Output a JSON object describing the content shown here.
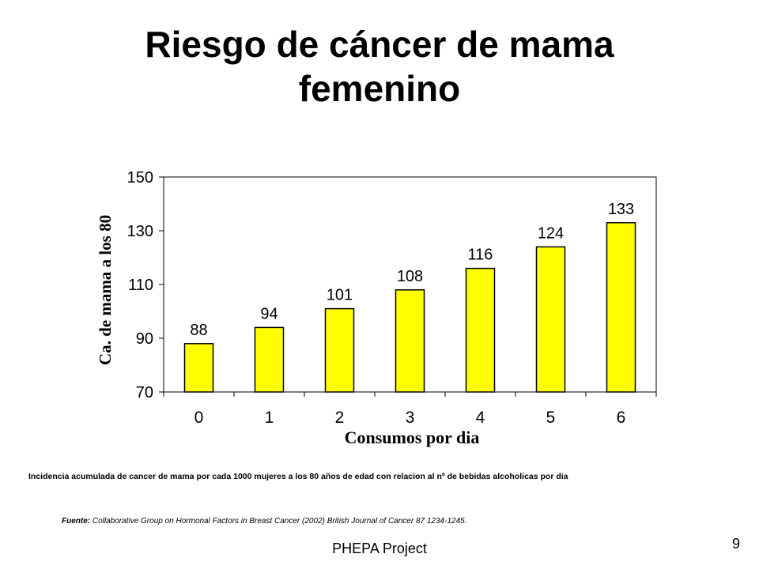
{
  "slide": {
    "title_line1": "Riesgo de cáncer de mama",
    "title_line2": "femenino",
    "caption": "Incidencia acumulada de cancer de mama por cada 1000 mujeres a los 80 años de edad con  relacion  al nº de bebidas  alcoholicas  por dia",
    "source_label": "Fuente:",
    "source_text": "Collaborative Group on Hormonal Factors in Breast Cancer (2002) British Journal of Cancer 87 1234-1245.",
    "footer": "PHEPA Project",
    "page_number": "9"
  },
  "colors": {
    "bar_fill": "#ffff00",
    "bar_stroke": "#000000"
  },
  "chart_data": {
    "type": "bar",
    "title": "",
    "xlabel": "Consumos por dia",
    "ylabel": "Ca. de mama a los 80",
    "categories": [
      "0",
      "1",
      "2",
      "3",
      "4",
      "5",
      "6"
    ],
    "values": [
      88,
      94,
      101,
      108,
      116,
      124,
      133
    ],
    "data_labels": [
      "88",
      "94",
      "101",
      "108",
      "116",
      "124",
      "133"
    ],
    "ylim": [
      70,
      150
    ],
    "yticks": [
      70,
      90,
      110,
      130,
      150
    ],
    "grid": false,
    "legend": "none"
  }
}
